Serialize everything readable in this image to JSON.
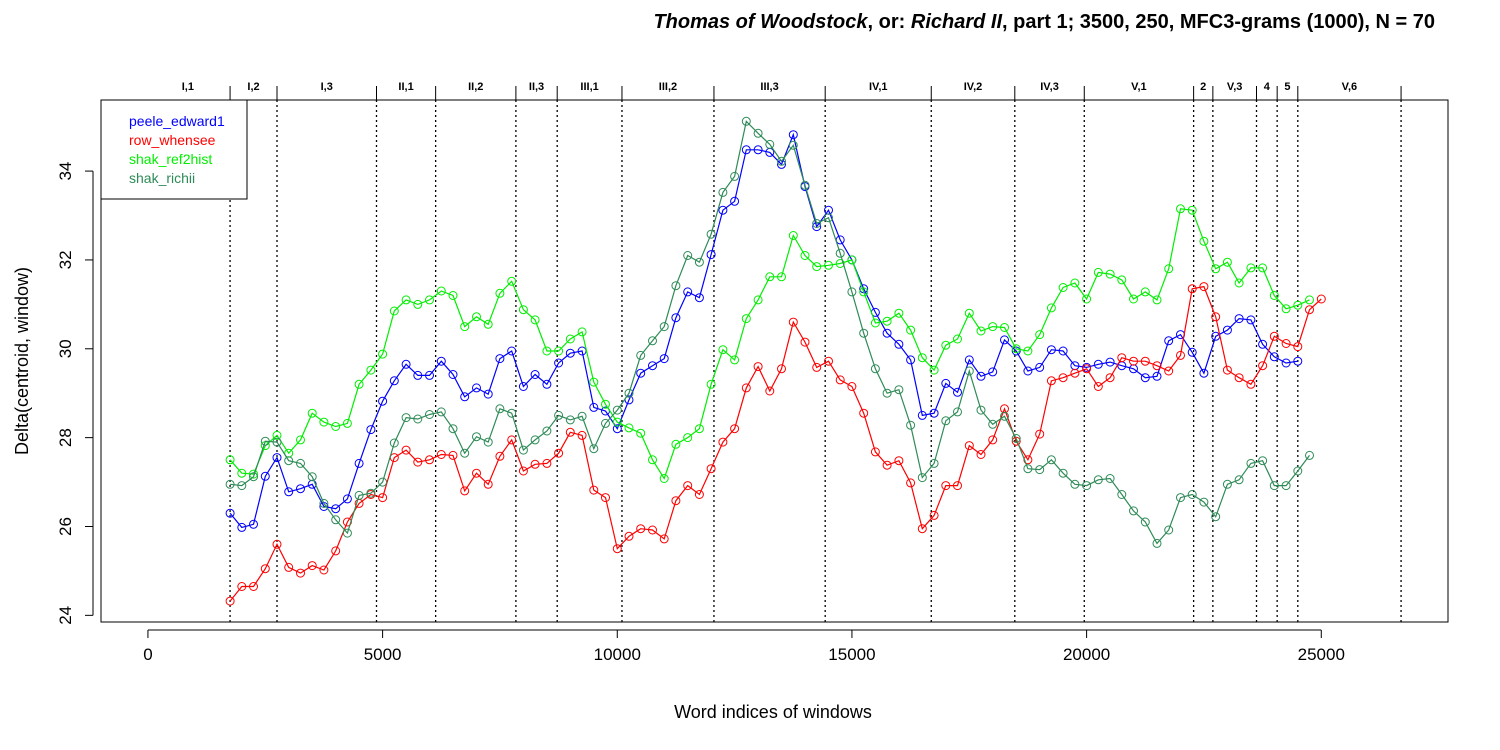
{
  "chart_data": {
    "type": "line",
    "title_parts": [
      {
        "text": "Thomas of Woodstock",
        "italic": true
      },
      {
        "text": ", or: ",
        "italic": false
      },
      {
        "text": "Richard II",
        "italic": true
      },
      {
        "text": ", part 1; 3500, 250, MFC3-grams (1000), N = 70",
        "italic": false
      }
    ],
    "xlabel": "Word indices of windows",
    "ylabel": "Delta(centroid, window)",
    "xlim": [
      -1000,
      27700
    ],
    "ylim": [
      23.85,
      35.6
    ],
    "xticks": [
      0,
      5000,
      10000,
      15000,
      20000,
      25000
    ],
    "yticks": [
      24,
      26,
      28,
      30,
      32,
      34
    ],
    "legend_position": "top-left",
    "scene_boundaries": [
      1750,
      2750,
      4870,
      6130,
      7840,
      8720,
      10100,
      12060,
      14430,
      16690,
      18470,
      19950,
      22280,
      22690,
      23620,
      24060,
      24500,
      26700
    ],
    "scene_labels": [
      {
        "label": "I,1",
        "x": 850
      },
      {
        "label": "I,2",
        "x": 2250
      },
      {
        "label": "I,3",
        "x": 3810
      },
      {
        "label": "II,1",
        "x": 5500
      },
      {
        "label": "II,2",
        "x": 6985
      },
      {
        "label": "II,3",
        "x": 8280
      },
      {
        "label": "III,1",
        "x": 9410
      },
      {
        "label": "III,2",
        "x": 11080
      },
      {
        "label": "III,3",
        "x": 13245
      },
      {
        "label": "IV,1",
        "x": 15560
      },
      {
        "label": "IV,2",
        "x": 17580
      },
      {
        "label": "IV,3",
        "x": 19210
      },
      {
        "label": "V,1",
        "x": 21115
      },
      {
        "label": "2",
        "x": 22485
      },
      {
        "label": "V,3",
        "x": 23155
      },
      {
        "label": "4",
        "x": 23840
      },
      {
        "label": "5",
        "x": 24280
      },
      {
        "label": "V,6",
        "x": 25600
      }
    ],
    "x_start": 1750,
    "x_step": 250,
    "series": [
      {
        "name": "peele_edward1",
        "color": "#0000ff",
        "values": [
          26.3,
          25.98,
          26.05,
          27.13,
          27.55,
          26.78,
          26.85,
          26.95,
          26.45,
          26.4,
          26.62,
          27.42,
          28.18,
          28.82,
          29.28,
          29.65,
          29.4,
          29.4,
          29.72,
          29.42,
          28.92,
          29.12,
          28.98,
          29.78,
          29.95,
          29.15,
          29.42,
          29.2,
          29.68,
          29.9,
          29.95,
          28.68,
          28.6,
          28.2,
          28.85,
          29.45,
          29.62,
          29.78,
          30.7,
          31.28,
          31.15,
          32.12,
          33.12,
          33.32,
          34.48,
          34.48,
          34.42,
          34.15,
          34.82,
          33.65,
          32.75,
          33.12,
          32.45,
          32.0,
          31.35,
          30.82,
          30.35,
          30.1,
          29.75,
          28.5,
          28.55,
          29.22,
          29.02,
          29.75,
          29.38,
          29.48,
          30.2,
          29.95,
          29.5,
          29.58,
          29.98,
          29.95,
          29.62,
          29.58,
          29.65,
          29.7,
          29.62,
          29.55,
          29.35,
          29.38,
          30.18,
          30.32,
          29.92,
          29.45,
          30.28,
          30.42,
          30.68,
          30.65,
          30.1,
          29.82,
          29.68,
          29.72
        ]
      },
      {
        "name": "row_whensee",
        "color": "#ff0000",
        "values": [
          24.32,
          24.65,
          24.65,
          25.05,
          25.6,
          25.08,
          24.95,
          25.12,
          25.02,
          25.45,
          26.1,
          26.52,
          26.72,
          26.65,
          27.55,
          27.72,
          27.45,
          27.5,
          27.62,
          27.6,
          26.8,
          27.2,
          26.95,
          27.58,
          27.95,
          27.25,
          27.4,
          27.42,
          27.65,
          28.12,
          28.05,
          26.82,
          26.65,
          25.5,
          25.78,
          25.95,
          25.92,
          25.72,
          26.58,
          26.92,
          26.72,
          27.3,
          27.9,
          28.2,
          29.12,
          29.6,
          29.05,
          29.55,
          30.6,
          30.15,
          29.58,
          29.72,
          29.3,
          29.15,
          28.55,
          27.68,
          27.38,
          27.48,
          26.98,
          25.95,
          26.25,
          26.92,
          26.92,
          27.82,
          27.62,
          27.95,
          28.65,
          27.92,
          27.5,
          28.08,
          29.28,
          29.35,
          29.45,
          29.55,
          29.15,
          29.35,
          29.8,
          29.72,
          29.72,
          29.62,
          29.5,
          29.85,
          31.35,
          31.4,
          30.72,
          29.52,
          29.35,
          29.2,
          29.62,
          30.28,
          30.12,
          30.05,
          30.88,
          31.12
        ]
      },
      {
        "name": "shak_ref2hist",
        "color": "#00ee00",
        "values": [
          27.5,
          27.2,
          27.18,
          27.82,
          28.05,
          27.65,
          27.95,
          28.55,
          28.35,
          28.25,
          28.32,
          29.2,
          29.52,
          29.88,
          30.85,
          31.1,
          31.0,
          31.1,
          31.3,
          31.2,
          30.5,
          30.72,
          30.55,
          31.25,
          31.52,
          30.88,
          30.65,
          29.95,
          29.95,
          30.22,
          30.38,
          29.25,
          28.75,
          28.35,
          28.22,
          28.1,
          27.5,
          27.08,
          27.85,
          28.0,
          28.2,
          29.2,
          29.98,
          29.75,
          30.68,
          31.1,
          31.62,
          31.62,
          32.55,
          32.1,
          31.85,
          31.88,
          31.92,
          32.0,
          31.28,
          30.58,
          30.62,
          30.8,
          30.42,
          29.8,
          29.52,
          30.08,
          30.22,
          30.8,
          30.4,
          30.5,
          30.48,
          30.0,
          29.95,
          30.32,
          30.92,
          31.38,
          31.48,
          31.12,
          31.72,
          31.68,
          31.55,
          31.12,
          31.28,
          31.1,
          31.8,
          33.15,
          33.12,
          32.42,
          31.8,
          31.95,
          31.48,
          31.82,
          31.82,
          31.2,
          30.9,
          30.98,
          31.1
        ]
      },
      {
        "name": "shak_richii",
        "color": "#2e8b57",
        "values": [
          26.95,
          26.92,
          27.12,
          27.92,
          27.9,
          27.48,
          27.42,
          27.12,
          26.52,
          26.15,
          25.85,
          26.7,
          26.75,
          27.0,
          27.88,
          28.45,
          28.42,
          28.52,
          28.58,
          28.2,
          27.65,
          28.02,
          27.9,
          28.65,
          28.55,
          27.72,
          27.95,
          28.15,
          28.5,
          28.4,
          28.48,
          27.75,
          28.32,
          28.62,
          29.0,
          29.85,
          30.18,
          30.5,
          31.42,
          32.1,
          31.95,
          32.58,
          33.52,
          33.88,
          35.12,
          34.85,
          34.6,
          34.22,
          34.58,
          33.68,
          32.82,
          32.95,
          32.15,
          31.28,
          30.35,
          29.55,
          29.0,
          29.08,
          28.28,
          27.1,
          27.42,
          28.38,
          28.58,
          29.5,
          28.62,
          28.3,
          28.48,
          27.98,
          27.3,
          27.28,
          27.5,
          27.2,
          26.95,
          26.92,
          27.05,
          27.08,
          26.72,
          26.35,
          26.1,
          25.62,
          25.92,
          26.65,
          26.72,
          26.55,
          26.22,
          26.95,
          27.05,
          27.42,
          27.48,
          26.92,
          26.92,
          27.25,
          27.6
        ]
      }
    ]
  }
}
